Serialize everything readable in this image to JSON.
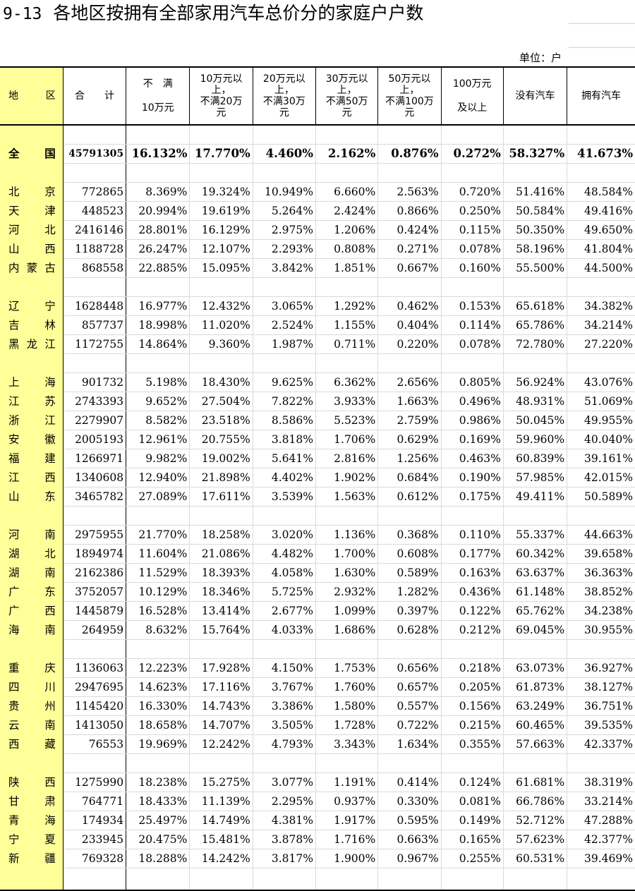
{
  "title": {
    "number": "9-13",
    "text": "各地区按拥有全部家用汽车总价分的家庭户户数"
  },
  "unit": "单位：户",
  "headers": {
    "region": [
      "地",
      "区"
    ],
    "total": [
      "合",
      "计"
    ],
    "c1": [
      "不　满",
      "10万元"
    ],
    "c2": [
      "10万元以",
      "上，",
      "不满20万",
      "元"
    ],
    "c3": [
      "20万元以",
      "上，",
      "不满30万",
      "元"
    ],
    "c4": [
      "30万元以",
      "上，",
      "不满50万",
      "元"
    ],
    "c5": [
      "50万元以",
      "上，",
      "不满100万",
      "元"
    ],
    "c6": [
      "100万元",
      "及以上"
    ],
    "c7": "没有汽车",
    "c8": "拥有汽车"
  },
  "national": {
    "name": [
      "全",
      "国"
    ],
    "total": "45791305",
    "values": [
      "16.132%",
      "17.770%",
      "4.460%",
      "2.162%",
      "0.876%",
      "0.272%",
      "58.327%",
      "41.673%"
    ]
  },
  "groups": [
    [
      {
        "name": [
          "北",
          "京"
        ],
        "total": "772865",
        "values": [
          "8.369%",
          "19.324%",
          "10.949%",
          "6.660%",
          "2.563%",
          "0.720%",
          "51.416%",
          "48.584%"
        ]
      },
      {
        "name": [
          "天",
          "津"
        ],
        "total": "448523",
        "values": [
          "20.994%",
          "19.619%",
          "5.264%",
          "2.424%",
          "0.866%",
          "0.250%",
          "50.584%",
          "49.416%"
        ]
      },
      {
        "name": [
          "河",
          "北"
        ],
        "total": "2416146",
        "values": [
          "28.801%",
          "16.129%",
          "2.975%",
          "1.206%",
          "0.424%",
          "0.115%",
          "50.350%",
          "49.650%"
        ]
      },
      {
        "name": [
          "山",
          "西"
        ],
        "total": "1188728",
        "values": [
          "26.247%",
          "12.107%",
          "2.293%",
          "0.808%",
          "0.271%",
          "0.078%",
          "58.196%",
          "41.804%"
        ]
      },
      {
        "name": [
          "内",
          "蒙",
          "古"
        ],
        "total": "868558",
        "values": [
          "22.885%",
          "15.095%",
          "3.842%",
          "1.851%",
          "0.667%",
          "0.160%",
          "55.500%",
          "44.500%"
        ]
      }
    ],
    [
      {
        "name": [
          "辽",
          "宁"
        ],
        "total": "1628448",
        "values": [
          "16.977%",
          "12.432%",
          "3.065%",
          "1.292%",
          "0.462%",
          "0.153%",
          "65.618%",
          "34.382%"
        ]
      },
      {
        "name": [
          "吉",
          "林"
        ],
        "total": "857737",
        "values": [
          "18.998%",
          "11.020%",
          "2.524%",
          "1.155%",
          "0.404%",
          "0.114%",
          "65.786%",
          "34.214%"
        ]
      },
      {
        "name": [
          "黑",
          "龙",
          "江"
        ],
        "total": "1172755",
        "values": [
          "14.864%",
          "9.360%",
          "1.987%",
          "0.711%",
          "0.220%",
          "0.078%",
          "72.780%",
          "27.220%"
        ]
      }
    ],
    [
      {
        "name": [
          "上",
          "海"
        ],
        "total": "901732",
        "values": [
          "5.198%",
          "18.430%",
          "9.625%",
          "6.362%",
          "2.656%",
          "0.805%",
          "56.924%",
          "43.076%"
        ]
      },
      {
        "name": [
          "江",
          "苏"
        ],
        "total": "2743393",
        "values": [
          "9.652%",
          "27.504%",
          "7.822%",
          "3.933%",
          "1.663%",
          "0.496%",
          "48.931%",
          "51.069%"
        ]
      },
      {
        "name": [
          "浙",
          "江"
        ],
        "total": "2279907",
        "values": [
          "8.582%",
          "23.518%",
          "8.586%",
          "5.523%",
          "2.759%",
          "0.986%",
          "50.045%",
          "49.955%"
        ]
      },
      {
        "name": [
          "安",
          "徽"
        ],
        "total": "2005193",
        "values": [
          "12.961%",
          "20.755%",
          "3.818%",
          "1.706%",
          "0.629%",
          "0.169%",
          "59.960%",
          "40.040%"
        ]
      },
      {
        "name": [
          "福",
          "建"
        ],
        "total": "1266971",
        "values": [
          "9.982%",
          "19.002%",
          "5.641%",
          "2.816%",
          "1.256%",
          "0.463%",
          "60.839%",
          "39.161%"
        ]
      },
      {
        "name": [
          "江",
          "西"
        ],
        "total": "1340608",
        "values": [
          "12.940%",
          "21.898%",
          "4.402%",
          "1.902%",
          "0.684%",
          "0.190%",
          "57.985%",
          "42.015%"
        ]
      },
      {
        "name": [
          "山",
          "东"
        ],
        "total": "3465782",
        "values": [
          "27.089%",
          "17.611%",
          "3.539%",
          "1.563%",
          "0.612%",
          "0.175%",
          "49.411%",
          "50.589%"
        ]
      }
    ],
    [
      {
        "name": [
          "河",
          "南"
        ],
        "total": "2975955",
        "values": [
          "21.770%",
          "18.258%",
          "3.020%",
          "1.136%",
          "0.368%",
          "0.110%",
          "55.337%",
          "44.663%"
        ]
      },
      {
        "name": [
          "湖",
          "北"
        ],
        "total": "1894974",
        "values": [
          "11.604%",
          "21.086%",
          "4.482%",
          "1.700%",
          "0.608%",
          "0.177%",
          "60.342%",
          "39.658%"
        ]
      },
      {
        "name": [
          "湖",
          "南"
        ],
        "total": "2162386",
        "values": [
          "11.529%",
          "18.393%",
          "4.058%",
          "1.630%",
          "0.589%",
          "0.163%",
          "63.637%",
          "36.363%"
        ]
      },
      {
        "name": [
          "广",
          "东"
        ],
        "total": "3752057",
        "values": [
          "10.129%",
          "18.346%",
          "5.725%",
          "2.932%",
          "1.282%",
          "0.436%",
          "61.148%",
          "38.852%"
        ]
      },
      {
        "name": [
          "广",
          "西"
        ],
        "total": "1445879",
        "values": [
          "16.528%",
          "13.414%",
          "2.677%",
          "1.099%",
          "0.397%",
          "0.122%",
          "65.762%",
          "34.238%"
        ]
      },
      {
        "name": [
          "海",
          "南"
        ],
        "total": "264959",
        "values": [
          "8.632%",
          "15.764%",
          "4.033%",
          "1.686%",
          "0.628%",
          "0.212%",
          "69.045%",
          "30.955%"
        ]
      }
    ],
    [
      {
        "name": [
          "重",
          "庆"
        ],
        "total": "1136063",
        "values": [
          "12.223%",
          "17.928%",
          "4.150%",
          "1.753%",
          "0.656%",
          "0.218%",
          "63.073%",
          "36.927%"
        ]
      },
      {
        "name": [
          "四",
          "川"
        ],
        "total": "2947695",
        "values": [
          "14.623%",
          "17.116%",
          "3.767%",
          "1.760%",
          "0.657%",
          "0.205%",
          "61.873%",
          "38.127%"
        ]
      },
      {
        "name": [
          "贵",
          "州"
        ],
        "total": "1145420",
        "values": [
          "16.330%",
          "14.743%",
          "3.386%",
          "1.580%",
          "0.557%",
          "0.156%",
          "63.249%",
          "36.751%"
        ]
      },
      {
        "name": [
          "云",
          "南"
        ],
        "total": "1413050",
        "values": [
          "18.658%",
          "14.707%",
          "3.505%",
          "1.728%",
          "0.722%",
          "0.215%",
          "60.465%",
          "39.535%"
        ]
      },
      {
        "name": [
          "西",
          "藏"
        ],
        "total": "76553",
        "values": [
          "19.969%",
          "12.242%",
          "4.793%",
          "3.343%",
          "1.634%",
          "0.355%",
          "57.663%",
          "42.337%"
        ]
      }
    ],
    [
      {
        "name": [
          "陕",
          "西"
        ],
        "total": "1275990",
        "values": [
          "18.238%",
          "15.275%",
          "3.077%",
          "1.191%",
          "0.414%",
          "0.124%",
          "61.681%",
          "38.319%"
        ]
      },
      {
        "name": [
          "甘",
          "肃"
        ],
        "total": "764771",
        "values": [
          "18.433%",
          "11.139%",
          "2.295%",
          "0.937%",
          "0.330%",
          "0.081%",
          "66.786%",
          "33.214%"
        ]
      },
      {
        "name": [
          "青",
          "海"
        ],
        "total": "174934",
        "values": [
          "25.497%",
          "14.749%",
          "4.381%",
          "1.917%",
          "0.595%",
          "0.149%",
          "52.712%",
          "47.288%"
        ]
      },
      {
        "name": [
          "宁",
          "夏"
        ],
        "total": "233945",
        "values": [
          "20.475%",
          "15.481%",
          "3.878%",
          "1.716%",
          "0.663%",
          "0.165%",
          "57.623%",
          "42.377%"
        ]
      },
      {
        "name": [
          "新",
          "疆"
        ],
        "total": "769328",
        "values": [
          "18.288%",
          "14.242%",
          "3.817%",
          "1.900%",
          "0.967%",
          "0.255%",
          "60.531%",
          "39.469%"
        ]
      }
    ]
  ]
}
